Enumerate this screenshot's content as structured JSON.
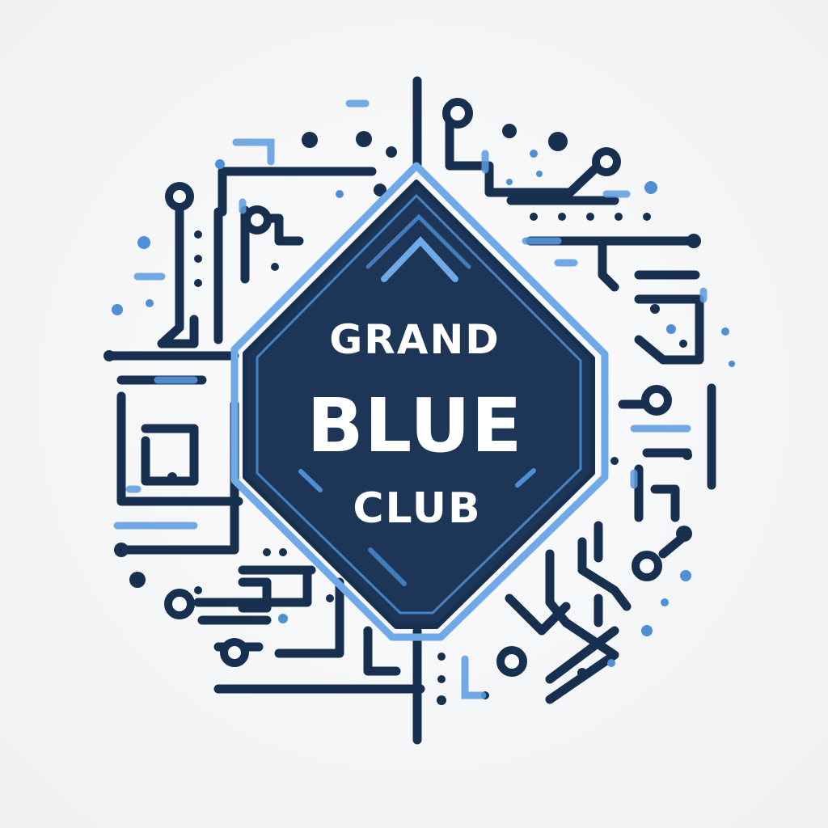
{
  "logo": {
    "line1": "GRAND",
    "line2": "BLUE",
    "line3": "CLUB"
  },
  "colors": {
    "background": "#f4f5f7",
    "navy": "#18304f",
    "badge_fill": "#1d3557",
    "accent_blue": "#4f8fd6",
    "light_blue": "#7fb3ea",
    "text": "#ffffff"
  }
}
